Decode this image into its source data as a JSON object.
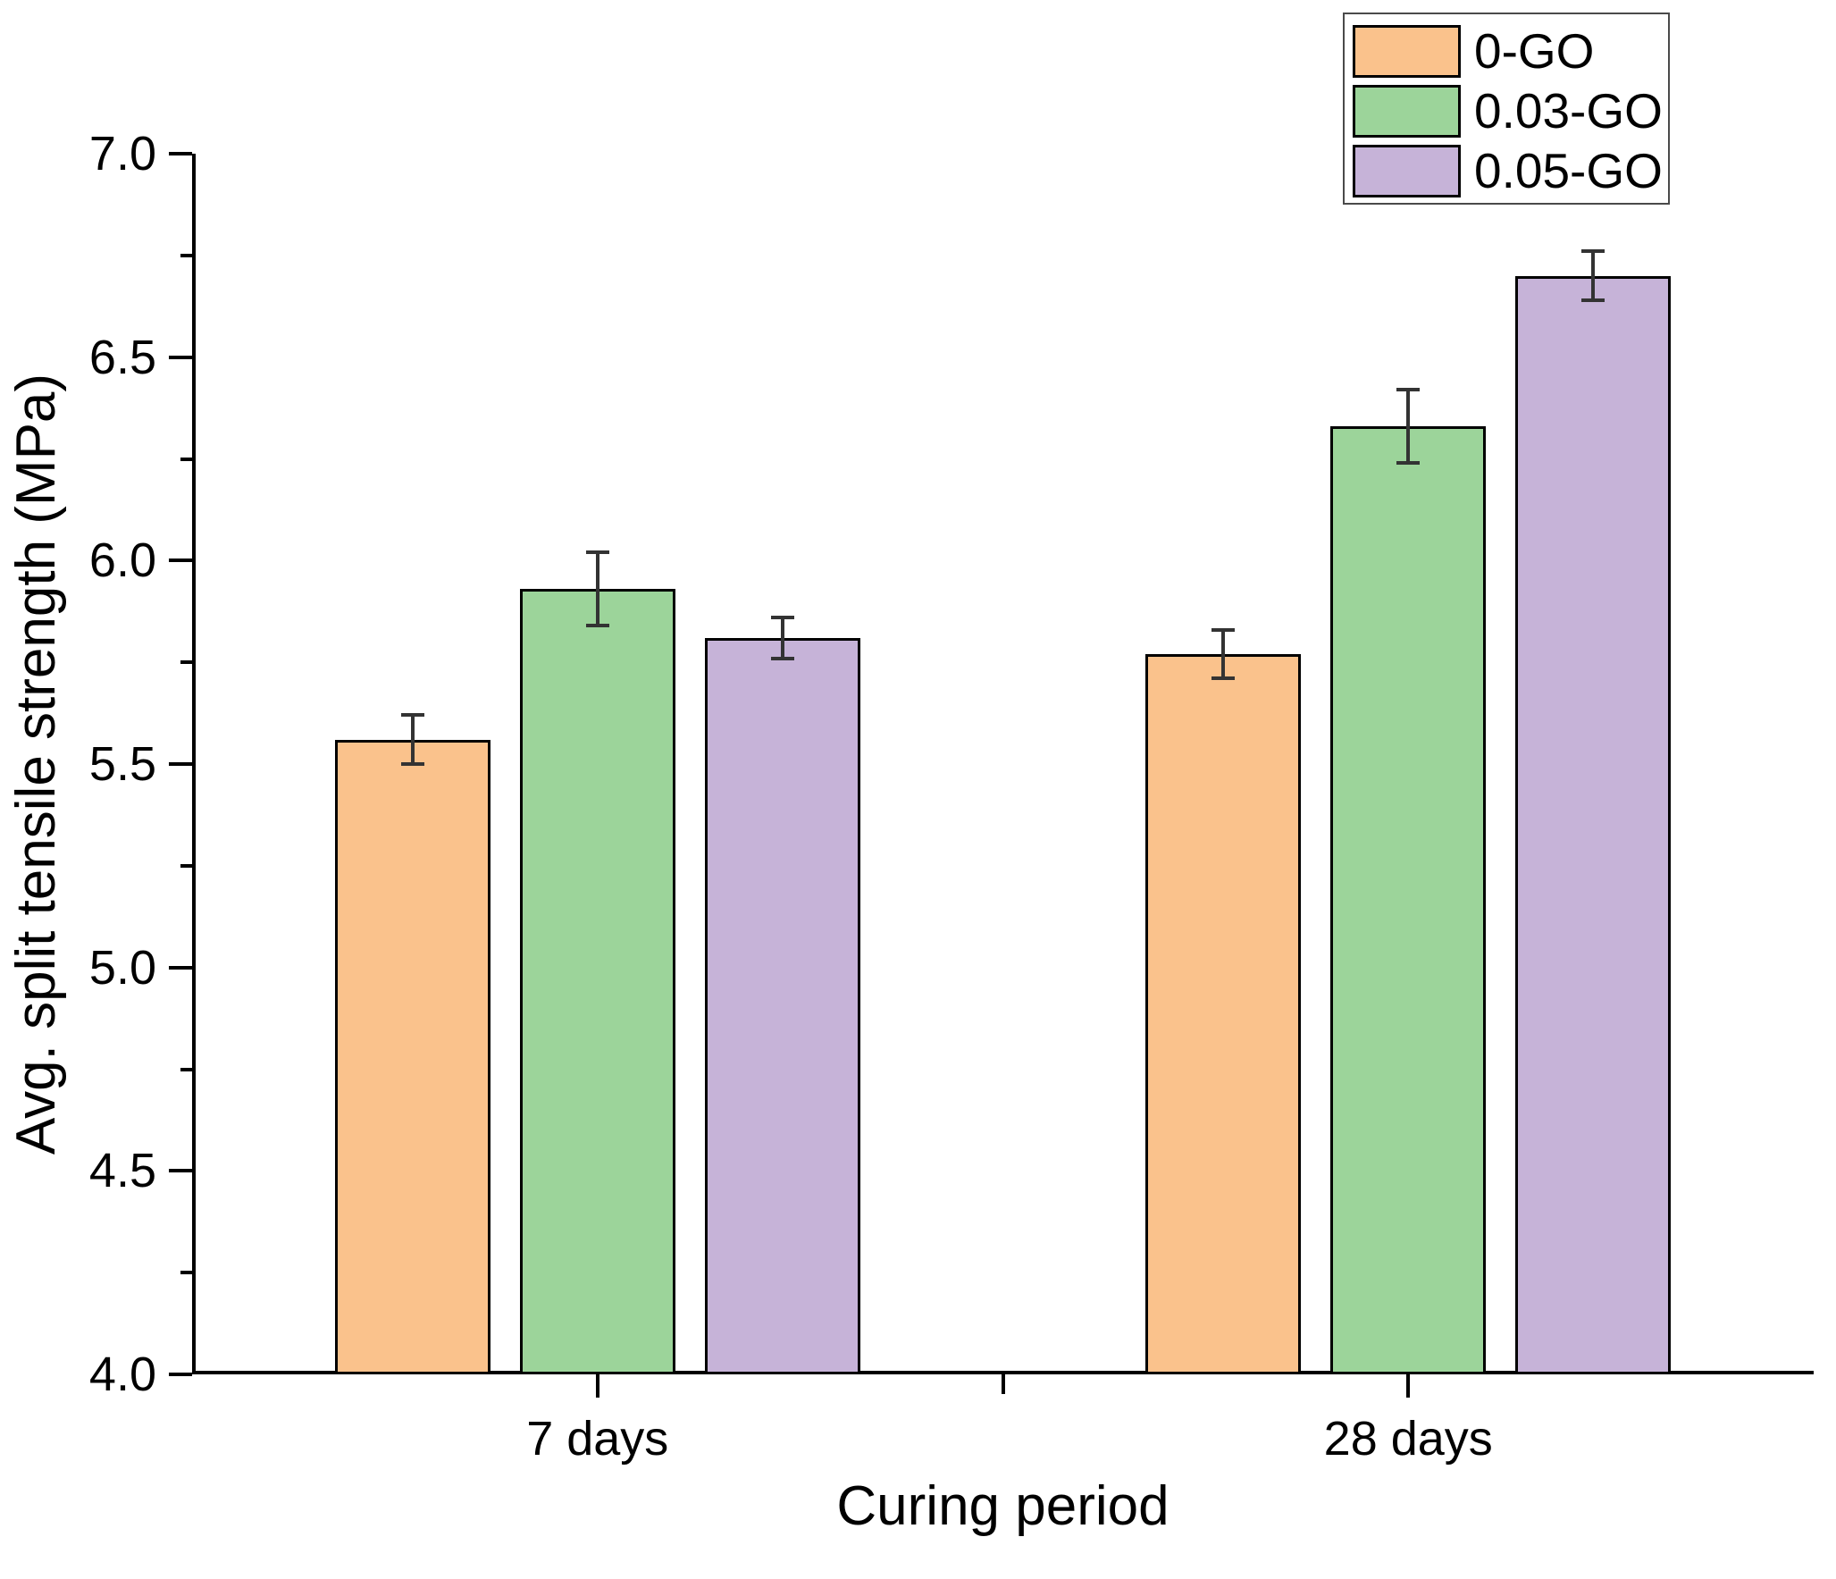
{
  "figure": {
    "background": "#ffffff"
  },
  "chart_data": {
    "type": "bar",
    "title": "",
    "xlabel": "Curing period",
    "ylabel": "Avg. split tensile strength (MPa)",
    "categories": [
      "7 days",
      "28 days"
    ],
    "series": [
      {
        "name": "0-GO",
        "color": "#FAC28C",
        "values": [
          5.56,
          5.77
        ],
        "errors": [
          0.06,
          0.06
        ]
      },
      {
        "name": "0.03-GO",
        "color": "#9CD49A",
        "values": [
          5.93,
          6.33
        ],
        "errors": [
          0.09,
          0.09
        ]
      },
      {
        "name": "0.05-GO",
        "color": "#C6B3D8",
        "values": [
          5.81,
          6.7
        ],
        "errors": [
          0.05,
          0.06
        ]
      }
    ],
    "ylim": [
      4.0,
      7.0
    ],
    "ytick_major_step": 0.5,
    "ytick_minor_step": 0.25,
    "ytick_labels": [
      "4.0",
      "4.5",
      "5.0",
      "5.5",
      "6.0",
      "6.5",
      "7.0"
    ],
    "grid": false,
    "legend_position": "top-right",
    "bar_border_color": "#000000",
    "error_bar_color": "#333333",
    "axis_color": "#000000"
  }
}
